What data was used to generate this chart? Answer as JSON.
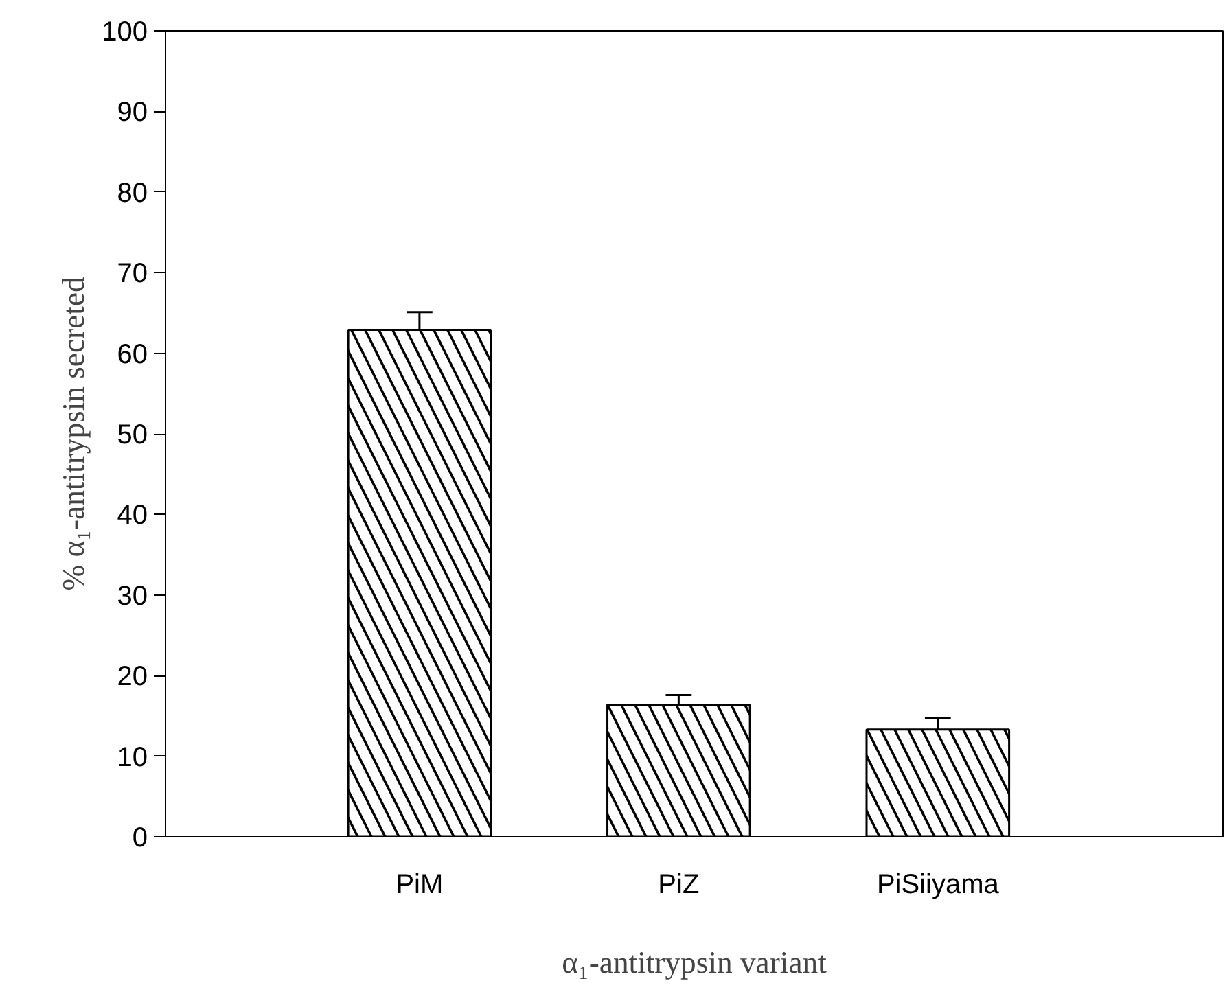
{
  "chart_data": {
    "type": "bar",
    "xlabel": "α₁-antitrypsin variant",
    "ylabel": "% α₁-antitrypsin secreted",
    "categories": [
      "PiM",
      "PiZ",
      "PiSiiyama"
    ],
    "values": [
      62.9,
      16.4,
      13.3
    ],
    "errors": [
      2.2,
      1.2,
      1.4
    ],
    "color": "#ffffff",
    "ylim": [
      0,
      100
    ],
    "yticks": [
      0,
      10,
      20,
      30,
      40,
      50,
      60,
      70,
      80,
      90,
      100
    ],
    "grid": false
  }
}
